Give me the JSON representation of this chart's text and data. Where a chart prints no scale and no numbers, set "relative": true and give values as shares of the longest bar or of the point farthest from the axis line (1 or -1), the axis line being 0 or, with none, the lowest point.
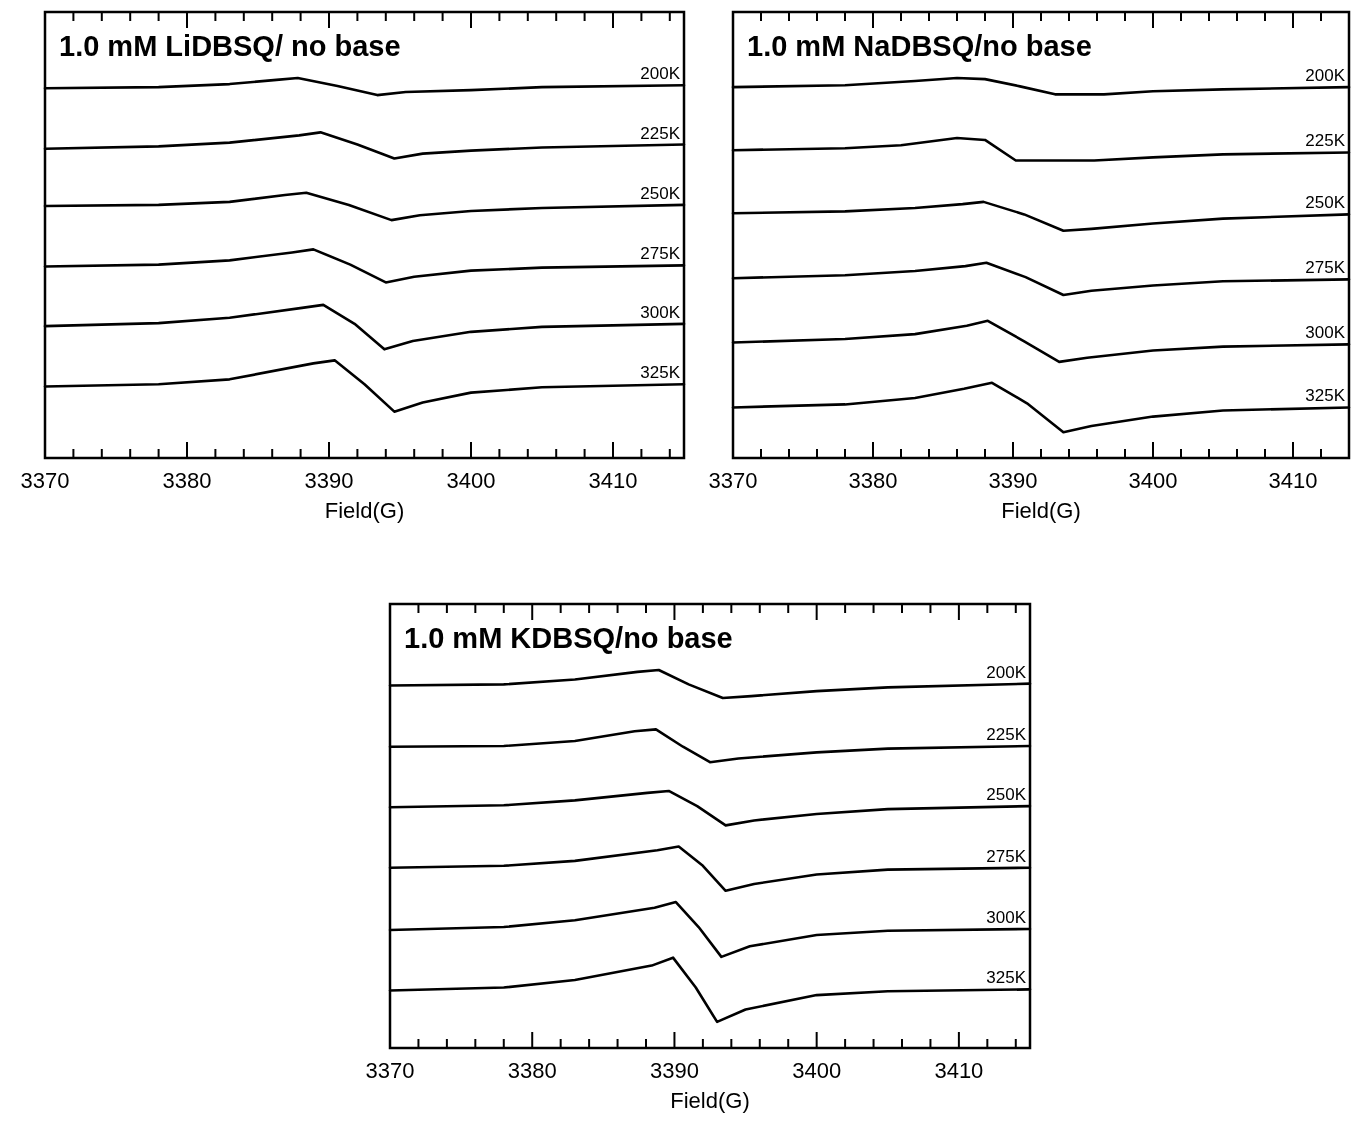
{
  "chart_data": [
    {
      "type": "line",
      "title": "1.0 mM LiDBSQ/ no base",
      "xlabel": "Field(G)",
      "relative": true,
      "xlim": [
        3370,
        3415
      ],
      "xticks": [
        3370,
        {
          "value": 3372,
          "label": null
        },
        {
          "value": 3374,
          "label": null
        },
        {
          "value": 3376,
          "label": null
        },
        {
          "value": 3378,
          "label": null
        },
        3380,
        {
          "value": 3382,
          "label": null
        },
        {
          "value": 3384,
          "label": null
        },
        {
          "value": 3386,
          "label": null
        },
        {
          "value": 3388,
          "label": null
        },
        3390,
        {
          "value": 3392,
          "label": null
        },
        {
          "value": 3394,
          "label": null
        },
        {
          "value": 3396,
          "label": null
        },
        {
          "value": 3398,
          "label": null
        },
        3400,
        {
          "value": 3402,
          "label": null
        },
        {
          "value": 3404,
          "label": null
        },
        {
          "value": 3406,
          "label": null
        },
        {
          "value": 3408,
          "label": null
        },
        3410,
        {
          "value": 3412,
          "label": null
        },
        {
          "value": 3414,
          "label": null
        }
      ],
      "grid": false,
      "marker": "none",
      "line_style": "solid",
      "series": [
        {
          "name": "200K",
          "color": "#000000",
          "x": [
            3370,
            3378,
            3383,
            3386.3,
            3387.8,
            3390.6,
            3393.4,
            3395.4,
            3400,
            3405,
            3415
          ],
          "values": [
            0.973,
            0.976,
            0.984,
            0.995,
            1,
            0.979,
            0.955,
            0.963,
            0.968,
            0.976,
            0.981
          ]
        },
        {
          "name": "225K",
          "color": "#000000",
          "x": [
            3370,
            3378,
            3383,
            3387.9,
            3389.4,
            3392,
            3394.6,
            3396.6,
            3400,
            3405,
            3415
          ],
          "values": [
            0.814,
            0.82,
            0.83,
            0.849,
            0.857,
            0.825,
            0.788,
            0.801,
            0.809,
            0.817,
            0.825
          ]
        },
        {
          "name": "250K",
          "color": "#000000",
          "x": [
            3370,
            3378,
            3383,
            3386.9,
            3388.4,
            3391.4,
            3394.4,
            3396.4,
            3400,
            3405,
            3415
          ],
          "values": [
            0.663,
            0.666,
            0.674,
            0.692,
            0.698,
            0.666,
            0.626,
            0.639,
            0.65,
            0.658,
            0.666
          ]
        },
        {
          "name": "275K",
          "color": "#000000",
          "x": [
            3370,
            3378,
            3383,
            3387.4,
            3388.9,
            3391.5,
            3394,
            3396,
            3400,
            3405,
            3415
          ],
          "values": [
            0.504,
            0.509,
            0.52,
            0.541,
            0.549,
            0.509,
            0.462,
            0.477,
            0.493,
            0.501,
            0.507
          ]
        },
        {
          "name": "300K",
          "color": "#000000",
          "x": [
            3370,
            3378,
            3383,
            3388.1,
            3389.6,
            3391.8,
            3393.9,
            3395.9,
            3400,
            3405,
            3415
          ],
          "values": [
            0.347,
            0.355,
            0.369,
            0.395,
            0.403,
            0.353,
            0.286,
            0.308,
            0.332,
            0.345,
            0.353
          ]
        },
        {
          "name": "325K",
          "color": "#000000",
          "x": [
            3370,
            3378,
            3383,
            3388.9,
            3390.4,
            3392.5,
            3394.6,
            3396.6,
            3400,
            3405,
            3415
          ],
          "values": [
            0.188,
            0.194,
            0.207,
            0.249,
            0.257,
            0.194,
            0.122,
            0.146,
            0.172,
            0.186,
            0.194
          ]
        }
      ]
    },
    {
      "type": "line",
      "title": "1.0 mM NaDBSQ/no base",
      "xlabel": "Field(G)",
      "relative": true,
      "xlim": [
        3370,
        3414
      ],
      "xticks": [
        3370,
        {
          "value": 3372,
          "label": null
        },
        {
          "value": 3374,
          "label": null
        },
        {
          "value": 3376,
          "label": null
        },
        {
          "value": 3378,
          "label": null
        },
        3380,
        {
          "value": 3382,
          "label": null
        },
        {
          "value": 3384,
          "label": null
        },
        {
          "value": 3386,
          "label": null
        },
        {
          "value": 3388,
          "label": null
        },
        3390,
        {
          "value": 3392,
          "label": null
        },
        {
          "value": 3394,
          "label": null
        },
        {
          "value": 3396,
          "label": null
        },
        {
          "value": 3398,
          "label": null
        },
        3400,
        {
          "value": 3402,
          "label": null
        },
        {
          "value": 3404,
          "label": null
        },
        {
          "value": 3406,
          "label": null
        },
        {
          "value": 3408,
          "label": null
        },
        3410,
        {
          "value": 3412,
          "label": null
        }
      ],
      "grid": false,
      "marker": "none",
      "line_style": "solid",
      "series": [
        {
          "name": "200K",
          "color": "#000000",
          "x": [
            3370,
            3378,
            3383,
            3386,
            3388,
            3390.5,
            3393,
            3396.5,
            3400,
            3405,
            3414
          ],
          "values": [
            0.976,
            0.981,
            0.992,
            1,
            0.997,
            0.978,
            0.957,
            0.957,
            0.965,
            0.97,
            0.976
          ]
        },
        {
          "name": "225K",
          "color": "#000000",
          "x": [
            3370,
            3378,
            3382,
            3386,
            3388,
            3390.2,
            3393,
            3395.8,
            3400,
            3405,
            3414
          ],
          "values": [
            0.81,
            0.815,
            0.823,
            0.842,
            0.837,
            0.783,
            0.783,
            0.783,
            0.791,
            0.799,
            0.804
          ]
        },
        {
          "name": "250K",
          "color": "#000000",
          "x": [
            3370,
            3378,
            3383,
            3386.4,
            3387.9,
            3390.8,
            3393.6,
            3395.6,
            3400,
            3405,
            3414
          ],
          "values": [
            0.644,
            0.649,
            0.658,
            0.668,
            0.674,
            0.641,
            0.598,
            0.603,
            0.617,
            0.63,
            0.641
          ]
        },
        {
          "name": "275K",
          "color": "#000000",
          "x": [
            3370,
            3378,
            3383,
            3386.6,
            3388.1,
            3390.9,
            3393.6,
            3395.6,
            3400,
            3405,
            3414
          ],
          "values": [
            0.473,
            0.481,
            0.492,
            0.505,
            0.514,
            0.476,
            0.429,
            0.44,
            0.454,
            0.465,
            0.47
          ]
        },
        {
          "name": "300K",
          "color": "#000000",
          "x": [
            3370,
            3378,
            3383,
            3386.7,
            3388.2,
            3390.8,
            3393.3,
            3395.3,
            3400,
            3405,
            3414
          ],
          "values": [
            0.304,
            0.313,
            0.326,
            0.348,
            0.361,
            0.307,
            0.253,
            0.264,
            0.283,
            0.293,
            0.299
          ]
        },
        {
          "name": "325K",
          "color": "#000000",
          "x": [
            3370,
            3378,
            3383,
            3386.5,
            3388.5,
            3391,
            3393.6,
            3395.6,
            3400,
            3405,
            3414
          ],
          "values": [
            0.133,
            0.141,
            0.158,
            0.182,
            0.198,
            0.144,
            0.068,
            0.084,
            0.109,
            0.125,
            0.133
          ]
        }
      ]
    },
    {
      "type": "line",
      "title": "1.0 mM KDBSQ/no base",
      "xlabel": "Field(G)",
      "relative": true,
      "xlim": [
        3370,
        3415
      ],
      "xticks": [
        3370,
        {
          "value": 3372,
          "label": null
        },
        {
          "value": 3374,
          "label": null
        },
        {
          "value": 3376,
          "label": null
        },
        {
          "value": 3378,
          "label": null
        },
        3380,
        {
          "value": 3382,
          "label": null
        },
        {
          "value": 3384,
          "label": null
        },
        {
          "value": 3386,
          "label": null
        },
        {
          "value": 3388,
          "label": null
        },
        3390,
        {
          "value": 3392,
          "label": null
        },
        {
          "value": 3394,
          "label": null
        },
        {
          "value": 3396,
          "label": null
        },
        {
          "value": 3398,
          "label": null
        },
        3400,
        {
          "value": 3402,
          "label": null
        },
        {
          "value": 3404,
          "label": null
        },
        {
          "value": 3406,
          "label": null
        },
        {
          "value": 3408,
          "label": null
        },
        3410,
        {
          "value": 3412,
          "label": null
        },
        {
          "value": 3414,
          "label": null
        }
      ],
      "grid": false,
      "marker": "none",
      "line_style": "solid",
      "series": [
        {
          "name": "200K",
          "color": "#000000",
          "x": [
            3370,
            3378,
            3383,
            3387.4,
            3388.9,
            3391,
            3393.4,
            3395.4,
            3400,
            3405,
            3415
          ],
          "values": [
            0.959,
            0.962,
            0.975,
            0.995,
            1,
            0.962,
            0.926,
            0.931,
            0.944,
            0.954,
            0.964
          ]
        },
        {
          "name": "225K",
          "color": "#000000",
          "x": [
            3370,
            3378,
            3383,
            3387.2,
            3388.7,
            3390.6,
            3392.5,
            3394.5,
            3400,
            3405,
            3415
          ],
          "values": [
            0.797,
            0.799,
            0.812,
            0.838,
            0.843,
            0.797,
            0.756,
            0.766,
            0.782,
            0.792,
            0.799
          ]
        },
        {
          "name": "250K",
          "color": "#000000",
          "x": [
            3370,
            3378,
            3383,
            3388.1,
            3389.6,
            3391.6,
            3393.6,
            3395.6,
            3400,
            3405,
            3415
          ],
          "values": [
            0.637,
            0.642,
            0.655,
            0.675,
            0.68,
            0.64,
            0.589,
            0.602,
            0.619,
            0.632,
            0.64
          ]
        },
        {
          "name": "275K",
          "color": "#000000",
          "x": [
            3370,
            3378,
            3383,
            3388.8,
            3390.3,
            3392,
            3393.6,
            3395.6,
            3400,
            3405,
            3415
          ],
          "values": [
            0.477,
            0.482,
            0.495,
            0.523,
            0.533,
            0.482,
            0.416,
            0.434,
            0.459,
            0.472,
            0.477
          ]
        },
        {
          "name": "300K",
          "color": "#000000",
          "x": [
            3370,
            3378,
            3383,
            3388.6,
            3390.1,
            3391.7,
            3393.3,
            3395.3,
            3400,
            3405,
            3415
          ],
          "values": [
            0.312,
            0.32,
            0.338,
            0.371,
            0.386,
            0.32,
            0.241,
            0.269,
            0.299,
            0.31,
            0.315
          ]
        },
        {
          "name": "325K",
          "color": "#000000",
          "x": [
            3370,
            3378,
            3383,
            3388.4,
            3389.9,
            3391.5,
            3393,
            3395,
            3400,
            3405,
            3415
          ],
          "values": [
            0.152,
            0.16,
            0.18,
            0.218,
            0.239,
            0.16,
            0.069,
            0.102,
            0.14,
            0.15,
            0.155
          ]
        }
      ]
    }
  ]
}
